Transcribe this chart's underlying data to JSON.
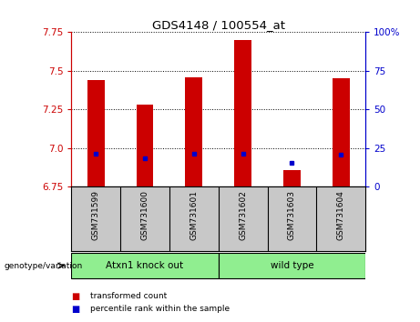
{
  "title": "GDS4148 / 100554_at",
  "samples": [
    "GSM731599",
    "GSM731600",
    "GSM731601",
    "GSM731602",
    "GSM731603",
    "GSM731604"
  ],
  "red_tops": [
    7.44,
    7.28,
    7.46,
    7.7,
    6.855,
    7.45
  ],
  "blue_y": [
    6.965,
    6.935,
    6.965,
    6.965,
    6.905,
    6.96
  ],
  "ymin": 6.75,
  "ymax": 7.75,
  "yticks": [
    6.75,
    7.0,
    7.25,
    7.5,
    7.75
  ],
  "right_yticks": [
    0,
    25,
    50,
    75,
    100
  ],
  "right_ytick_labels": [
    "0",
    "25",
    "50",
    "75",
    "100%"
  ],
  "bar_color": "#cc0000",
  "blue_color": "#0000cc",
  "bar_width": 0.35,
  "group_bg_color": "#c8c8c8",
  "group_green_color": "#90ee90",
  "genotype_label": "genotype/variation",
  "group_labels": [
    "Atxn1 knock out",
    "wild type"
  ],
  "legend_red_label": "transformed count",
  "legend_blue_label": "percentile rank within the sample",
  "plot_bg": "#ffffff",
  "tick_color_left": "#cc0000",
  "tick_color_right": "#0000cc"
}
